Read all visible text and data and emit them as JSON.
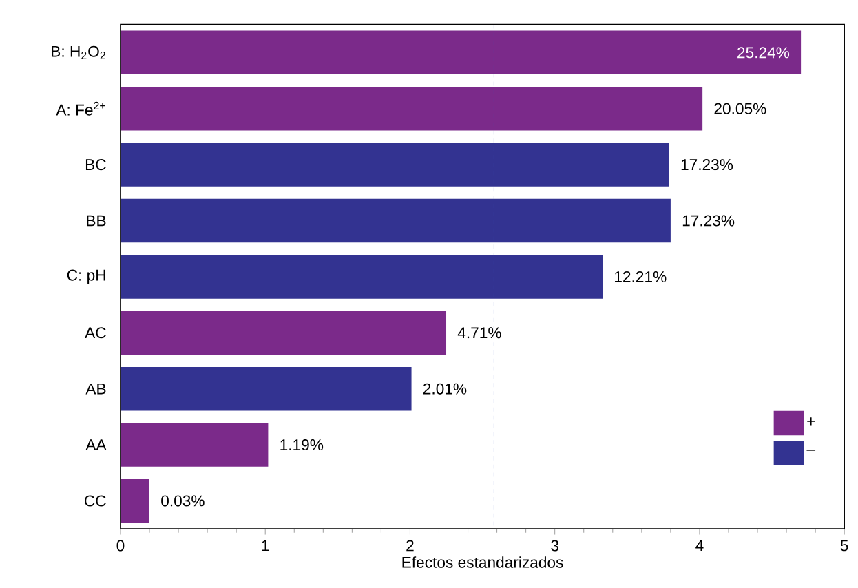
{
  "chart_data": {
    "type": "bar",
    "orientation": "horizontal",
    "xlabel": "Efectos estandarizados",
    "categories": [
      "B: H$_{2}$O$_{2}$",
      "A: Fe$^{2+}$",
      "BC",
      "BB",
      "C: pH",
      "AC",
      "AB",
      "AA",
      "CC"
    ],
    "series": [
      {
        "name": "+",
        "color": "#7b2a8a",
        "values": [
          4.7,
          4.02,
          null,
          null,
          null,
          2.25,
          null,
          1.02,
          0.2
        ]
      },
      {
        "name": "–",
        "color": "#333391",
        "values": [
          null,
          null,
          3.79,
          3.8,
          3.33,
          null,
          2.01,
          null,
          null
        ]
      }
    ],
    "annotations": [
      {
        "text": "25.24%",
        "x": 4.7,
        "y": "B: H$_{2}$O$_{2}$"
      },
      {
        "text": "20.05%",
        "x": 4.02,
        "y": "A: Fe$^{2+}$"
      },
      {
        "text": "17.23%",
        "x": 3.79,
        "y": "BC"
      },
      {
        "text": "17.23%",
        "x": 3.8,
        "y": "BB"
      },
      {
        "text": "12.21%",
        "x": 3.33,
        "y": "C: pH"
      },
      {
        "text": "4.71%",
        "x": 2.25,
        "y": "AC"
      },
      {
        "text": "2.01%",
        "x": 2.01,
        "y": "AB"
      },
      {
        "text": "1.19%",
        "x": 1.02,
        "y": "AA"
      },
      {
        "text": "0.03%",
        "x": 0.2,
        "y": "CC"
      }
    ],
    "xlim": [
      0,
      5
    ],
    "xticks": [
      0,
      1,
      2,
      3,
      4,
      5
    ],
    "ref_lines": [
      {
        "axis": "x",
        "value": 2.58,
        "color": "#3a5fc4",
        "line_style": "dashed"
      }
    ],
    "legend": "bottom right",
    "grid": false
  }
}
